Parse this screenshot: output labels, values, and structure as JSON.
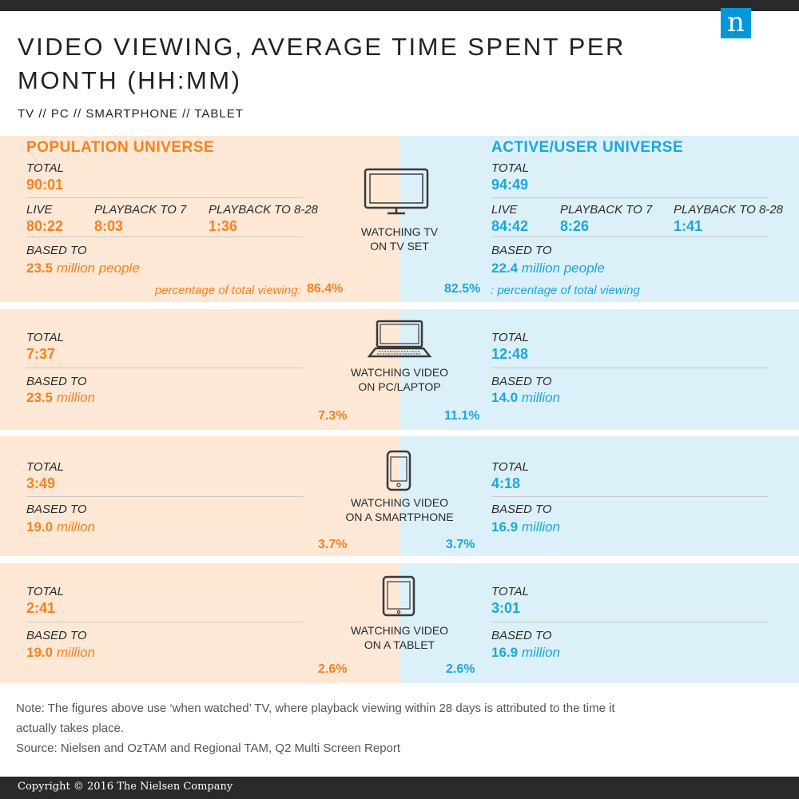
{
  "title": "VIDEO VIEWING, AVERAGE TIME SPENT PER MONTH (HH:MM)",
  "subtitle": "TV // PC // SMARTPHONE // TABLET",
  "logo_letter": "n",
  "colors": {
    "population": "#f58220",
    "active": "#19a7e0",
    "population_bg": "#fde8d6",
    "active_bg": "#dcf0f9"
  },
  "headers": {
    "left": "POPULATION UNIVERSE",
    "right": "ACTIVE/USER UNIVERSE"
  },
  "labels": {
    "total": "TOTAL",
    "live": "LIVE",
    "playback7": "PLAYBACK TO 7",
    "playback828": "PLAYBACK TO 8-28",
    "based_to": "BASED TO",
    "million_people": "million people",
    "million": "million"
  },
  "tv": {
    "device": [
      "WATCHING TV",
      "ON TV SET"
    ],
    "icon": "tv-icon",
    "left": {
      "total": "90:01",
      "live": "80:22",
      "playback7": "8:03",
      "playback828": "1:36",
      "based": "23.5",
      "pct": "86.4%",
      "pct_note": "percentage of total viewing:"
    },
    "right": {
      "total": "94:49",
      "live": "84:42",
      "playback7": "8:26",
      "playback828": "1:41",
      "based": "22.4",
      "pct": "82.5%",
      "pct_note": ": percentage of total viewing"
    }
  },
  "pc": {
    "device": [
      "WATCHING VIDEO",
      "ON PC/LAPTOP"
    ],
    "icon": "laptop-icon",
    "left": {
      "total": "7:37",
      "based": "23.5",
      "pct": "7.3%"
    },
    "right": {
      "total": "12:48",
      "based": "14.0",
      "pct": "11.1%"
    }
  },
  "smartphone": {
    "device": [
      "WATCHING VIDEO",
      "ON A SMARTPHONE"
    ],
    "icon": "smartphone-icon",
    "left": {
      "total": "3:49",
      "based": "19.0",
      "pct": "3.7%"
    },
    "right": {
      "total": "4:18",
      "based": "16.9",
      "pct": "3.7%"
    }
  },
  "tablet": {
    "device": [
      "WATCHING VIDEO",
      "ON A TABLET"
    ],
    "icon": "tablet-icon",
    "left": {
      "total": "2:41",
      "based": "19.0",
      "pct": "2.6%"
    },
    "right": {
      "total": "3:01",
      "based": "16.9",
      "pct": "2.6%"
    }
  },
  "note_line1": "Note: The figures above use ‘when watched’ TV, where playback viewing within 28 days is attributed to the time it",
  "note_line2": "actually takes place.",
  "source": "Source: Nielsen and OzTAM and Regional TAM, Q2 Multi Screen Report",
  "copyright": "Copyright © 2016 The Nielsen Company"
}
